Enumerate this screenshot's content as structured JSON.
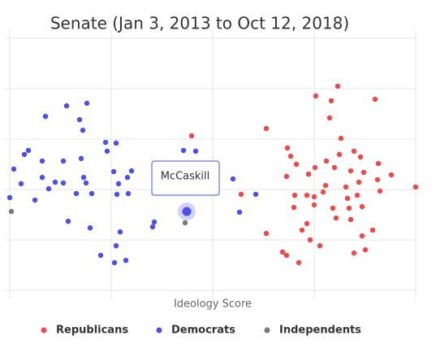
{
  "chart_data": {
    "type": "scatter",
    "title": "Senate (Jan 3, 2013 to Oct 12, 2018)",
    "x_label": "Ideology Score",
    "tooltip": "McCaskill",
    "xlim": [
      0,
      1
    ],
    "ylim": [
      0,
      1
    ],
    "xticks": [
      0,
      0.25,
      0.5,
      0.75,
      1
    ],
    "yticks": [
      0,
      0.2,
      0.4,
      0.6,
      0.8,
      1
    ],
    "grid": true,
    "legend": "bottom",
    "series": [
      {
        "name": "Republicans",
        "color": "#f04848",
        "x": [
          0.448,
          0.57,
          0.632,
          0.754,
          0.792,
          0.808,
          0.9,
          0.788,
          0.816,
          0.684,
          0.692,
          0.78,
          0.812,
          0.848,
          0.864,
          0.706,
          0.752,
          0.8,
          0.84,
          0.872,
          0.908,
          0.94,
          0.682,
          0.736,
          0.778,
          0.828,
          0.86,
          0.906,
          1.0,
          0.702,
          0.732,
          0.75,
          0.772,
          0.832,
          0.856,
          0.912,
          0.796,
          0.836,
          0.868,
          0.7,
          0.75,
          0.804,
          0.732,
          0.72,
          0.84,
          0.894,
          0.868,
          0.632,
          0.74,
          0.764,
          0.672,
          0.682,
          0.712,
          0.848,
          0.876
        ],
        "values": [
          0.613,
          0.381,
          0.642,
          0.771,
          0.752,
          0.81,
          0.758,
          0.684,
          0.603,
          0.565,
          0.532,
          0.513,
          0.539,
          0.552,
          0.529,
          0.5,
          0.487,
          0.487,
          0.474,
          0.468,
          0.503,
          0.458,
          0.452,
          0.461,
          0.416,
          0.41,
          0.429,
          0.439,
          0.41,
          0.377,
          0.377,
          0.371,
          0.39,
          0.365,
          0.377,
          0.394,
          0.326,
          0.326,
          0.332,
          0.329,
          0.339,
          0.287,
          0.265,
          0.239,
          0.281,
          0.239,
          0.216,
          0.226,
          0.2,
          0.177,
          0.152,
          0.139,
          0.11,
          0.148,
          0.161
        ]
      },
      {
        "name": "Democrats",
        "color": "#4c4ff0",
        "x": [
          0.19,
          0.14,
          0.088,
          0.172,
          0.18,
          0.036,
          0.046,
          0.01,
          0.08,
          0.132,
          0.176,
          0.236,
          0.262,
          0.24,
          0.428,
          0.458,
          0.0,
          0.028,
          0.062,
          0.08,
          0.096,
          0.112,
          0.132,
          0.164,
          0.182,
          0.188,
          0.202,
          0.256,
          0.268,
          0.3,
          0.29,
          0.264,
          0.292,
          0.55,
          0.606,
          0.566,
          0.144,
          0.198,
          0.272,
          0.356,
          0.352,
          0.262,
          0.224,
          0.258,
          0.286,
          0.436
        ],
        "values": [
          0.742,
          0.732,
          0.69,
          0.677,
          0.635,
          0.539,
          0.555,
          0.481,
          0.513,
          0.513,
          0.523,
          0.587,
          0.584,
          0.552,
          0.555,
          0.552,
          0.368,
          0.423,
          0.358,
          0.448,
          0.403,
          0.429,
          0.426,
          0.384,
          0.448,
          0.426,
          0.384,
          0.471,
          0.423,
          0.474,
          0.448,
          0.381,
          0.384,
          0.442,
          0.381,
          0.31,
          0.274,
          0.248,
          0.232,
          0.271,
          0.252,
          0.177,
          0.139,
          0.11,
          0.119,
          0.313
        ]
      },
      {
        "name": "Independents",
        "color": "#777777",
        "x": [
          0.004,
          0.432
        ],
        "values": [
          0.313,
          0.268
        ]
      }
    ]
  }
}
